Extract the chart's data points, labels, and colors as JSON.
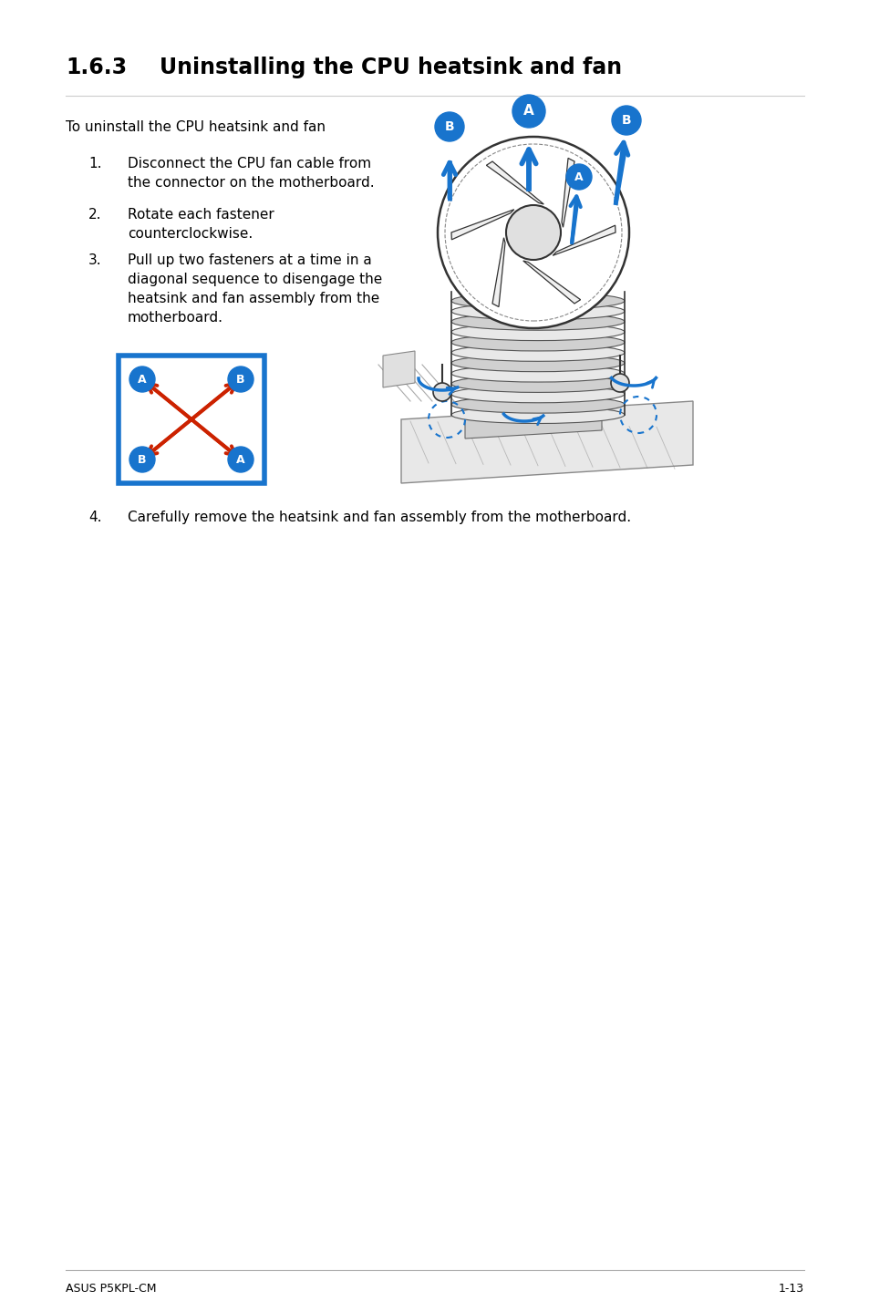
{
  "title_number": "1.6.3",
  "title_text": "Uninstalling the CPU heatsink and fan",
  "intro_text": "To uninstall the CPU heatsink and fan",
  "step1_num": "1.",
  "step1_line1": "Disconnect the CPU fan cable from",
  "step1_line2": "the connector on the motherboard.",
  "step2_num": "2.",
  "step2_line1": "Rotate each fastener",
  "step2_line2": "counterclockwise.",
  "step3_num": "3.",
  "step3_line1": "Pull up two fasteners at a time in a",
  "step3_line2": "diagonal sequence to disengage the",
  "step3_line3": "heatsink and fan assembly from the",
  "step3_line4": "motherboard.",
  "step4_num": "4.",
  "step4_text": "Carefully remove the heatsink and fan assembly from the motherboard.",
  "footer_left": "ASUS P5KPL-CM",
  "footer_right": "1-13",
  "bg_color": "#ffffff",
  "text_color": "#000000",
  "title_color": "#000000",
  "blue_color": "#1874CD",
  "red_color": "#CC2200",
  "border_color": "#1874CD",
  "line_color": "#333333",
  "gray_color": "#888888",
  "light_gray": "#dddddd",
  "footer_line_color": "#aaaaaa"
}
